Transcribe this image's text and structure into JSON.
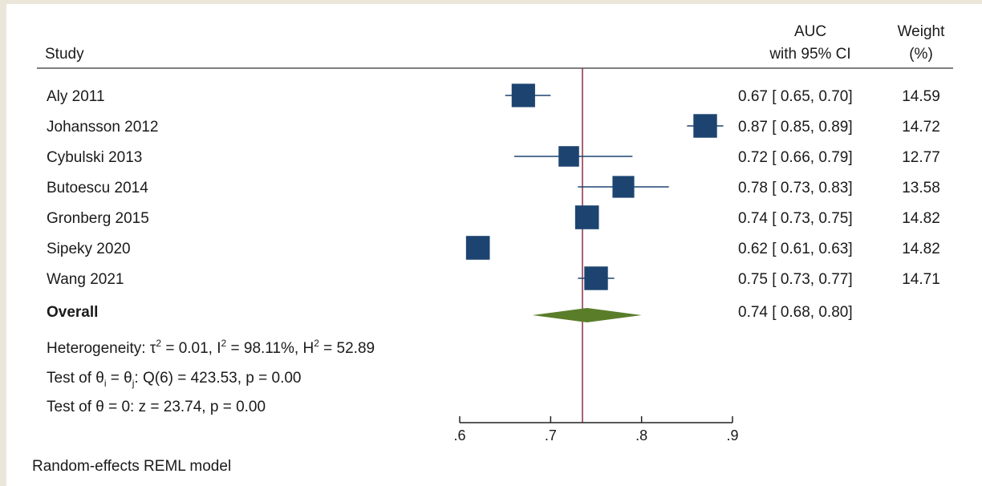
{
  "chart_data": {
    "type": "forest",
    "headers": {
      "study": "Study",
      "auc_line1": "AUC",
      "auc_line2": "with 95% CI",
      "weight_line1": "Weight",
      "weight_line2": "(%)"
    },
    "studies": [
      {
        "name": "Aly 2011",
        "auc": 0.67,
        "lo": 0.65,
        "hi": 0.7,
        "ci_text": "0.67 [ 0.65,  0.70]",
        "weight": 14.59,
        "weight_text": "14.59"
      },
      {
        "name": "Johansson 2012",
        "auc": 0.87,
        "lo": 0.85,
        "hi": 0.89,
        "ci_text": "0.87 [ 0.85,  0.89]",
        "weight": 14.72,
        "weight_text": "14.72"
      },
      {
        "name": "Cybulski 2013",
        "auc": 0.72,
        "lo": 0.66,
        "hi": 0.79,
        "ci_text": "0.72 [ 0.66,  0.79]",
        "weight": 12.77,
        "weight_text": "12.77"
      },
      {
        "name": "Butoescu 2014",
        "auc": 0.78,
        "lo": 0.73,
        "hi": 0.83,
        "ci_text": "0.78 [ 0.73,  0.83]",
        "weight": 13.58,
        "weight_text": "13.58"
      },
      {
        "name": "Gronberg 2015",
        "auc": 0.74,
        "lo": 0.73,
        "hi": 0.75,
        "ci_text": "0.74 [ 0.73,  0.75]",
        "weight": 14.82,
        "weight_text": "14.82"
      },
      {
        "name": "Sipeky 2020",
        "auc": 0.62,
        "lo": 0.61,
        "hi": 0.63,
        "ci_text": "0.62 [ 0.61,  0.63]",
        "weight": 14.82,
        "weight_text": "14.82"
      },
      {
        "name": "Wang 2021",
        "auc": 0.75,
        "lo": 0.73,
        "hi": 0.77,
        "ci_text": "0.75 [ 0.73,  0.77]",
        "weight": 14.71,
        "weight_text": "14.71"
      }
    ],
    "overall": {
      "label": "Overall",
      "auc": 0.74,
      "lo": 0.68,
      "hi": 0.8,
      "ci_text": "0.74 [ 0.68,  0.80]"
    },
    "heterogeneity": {
      "prefix": "Heterogeneity: τ",
      "tau2_sup": "2",
      "mid1": " = 0.01, I",
      "i2_sup": "2",
      "mid2": " = 98.11%, H",
      "h2_sup": "2",
      "suffix": " = 52.89"
    },
    "test_equal": {
      "p1": "Test of θ",
      "s1": "i",
      "p2": " = θ",
      "s2": "j",
      "p3": ": Q(6) = 423.53, p = 0.00"
    },
    "test_zero": "Test of θ = 0: z = 23.74, p = 0.00",
    "x_ticks": [
      0.6,
      0.7,
      0.8,
      0.9
    ],
    "x_tick_labels": [
      ".6",
      ".7",
      ".8",
      ".9"
    ],
    "xlim": [
      0.6,
      0.9
    ],
    "reference_line": 0.735,
    "colors": {
      "marker": "#1d4470",
      "ci_line": "#1d4470",
      "diamond": "#5a7d2a",
      "reference_line": "#8c2f48",
      "header_rule": "#555555"
    },
    "footnote": "Random-effects REML model"
  }
}
